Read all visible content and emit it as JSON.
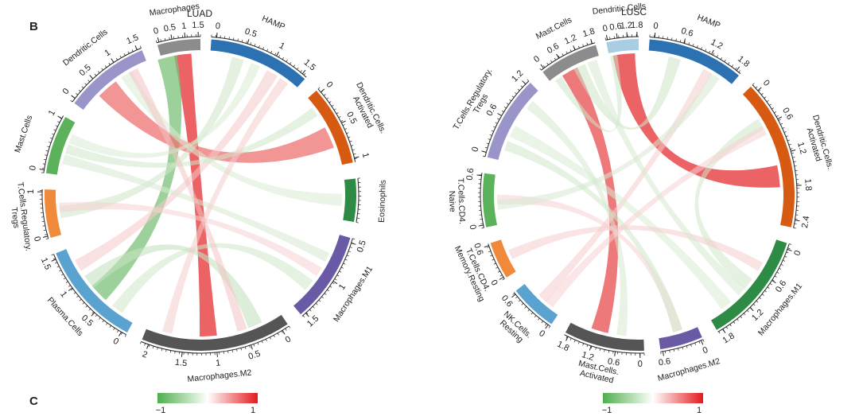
{
  "panel_b_label": "B",
  "panel_c_label": "C",
  "colorbar": {
    "min_label": "−1",
    "max_label": "1",
    "low_color": "#4daf4a",
    "mid_color": "#ffffff",
    "high_color": "#e41a1c"
  },
  "diagrams": [
    {
      "title": "LUAD",
      "sectors": [
        {
          "name": "HAMP",
          "color": "#2c72b2",
          "ticks": [
            "0",
            "0.5",
            "1",
            "1.5"
          ]
        },
        {
          "name": "Dendritic.Cells.\nActivated",
          "color": "#d65a12",
          "ticks": [
            "0",
            "0.5",
            "1"
          ]
        },
        {
          "name": "Eosinophils",
          "color": "#2e8b45",
          "ticks": []
        },
        {
          "name": "Macrophages.M1",
          "color": "#6a5aa6",
          "ticks": [
            "0.5",
            "1",
            "1.5"
          ]
        },
        {
          "name": "Macrophages.M2",
          "color": "#555555",
          "ticks": [
            "0",
            "0.5",
            "1",
            "1.5",
            "2"
          ]
        },
        {
          "name": "Plasma.Cells",
          "color": "#5aa2d0",
          "ticks": [
            "0",
            "0.5",
            "1",
            "1.5"
          ]
        },
        {
          "name": "T.Cells.Regulatory.\nTregs",
          "color": "#f08a3a",
          "ticks": [
            "0",
            "1"
          ]
        },
        {
          "name": "Mast.Cells",
          "color": "#5bb25b",
          "ticks": [
            "0",
            "1"
          ]
        },
        {
          "name": "Dendritic.Cells",
          "color": "#9a95c8",
          "ticks": [
            "0",
            "0.5",
            "1",
            "1.5"
          ]
        },
        {
          "name": "Macrophages",
          "color": "#8c8c8c",
          "ticks": [
            "0",
            "0.5",
            "1",
            "1.5"
          ]
        }
      ]
    },
    {
      "title": "LUSC",
      "sectors": [
        {
          "name": "HAMP",
          "color": "#2c72b2",
          "ticks": [
            "0",
            "0.6",
            "1.2",
            "1.8"
          ]
        },
        {
          "name": "Dendritic.Cells.\nActivated",
          "color": "#d65a12",
          "ticks": [
            "0",
            "0.6",
            "1.2",
            "1.8",
            "2.4"
          ]
        },
        {
          "name": "Macrophages.M1",
          "color": "#2e8b45",
          "ticks": [
            "0",
            "0.6",
            "1.2",
            "1.8"
          ]
        },
        {
          "name": "Macrophages.M2",
          "color": "#6a5aa6",
          "ticks": [
            "0",
            "0.6"
          ]
        },
        {
          "name": "Mast.Cells.\nActivated",
          "color": "#555555",
          "ticks": [
            "0",
            "0.6",
            "1.2",
            "1.8"
          ]
        },
        {
          "name": "NK.Cells.\nResting",
          "color": "#5aa2d0",
          "ticks": [
            "0",
            "0.6"
          ]
        },
        {
          "name": "T.Cells.CD4.\nMemory.Resting",
          "color": "#f08a3a",
          "ticks": [
            "0",
            "0.6"
          ]
        },
        {
          "name": "T.Cells.CD4.\nNaive",
          "color": "#5bb25b",
          "ticks": [
            "0",
            "0.6"
          ]
        },
        {
          "name": "T.Cells.Regulatory.\nTregs",
          "color": "#9a95c8",
          "ticks": [
            "0",
            "0.6",
            "1.2"
          ]
        },
        {
          "name": "Mast.Cells",
          "color": "#8c8c8c",
          "ticks": [
            "0",
            "0.6",
            "1.2",
            "1.8"
          ]
        },
        {
          "name": "Dendritic.Cells",
          "color": "#a9cde3",
          "ticks": [
            "0",
            "0.6",
            "1.2",
            "1.8"
          ]
        }
      ]
    }
  ]
}
